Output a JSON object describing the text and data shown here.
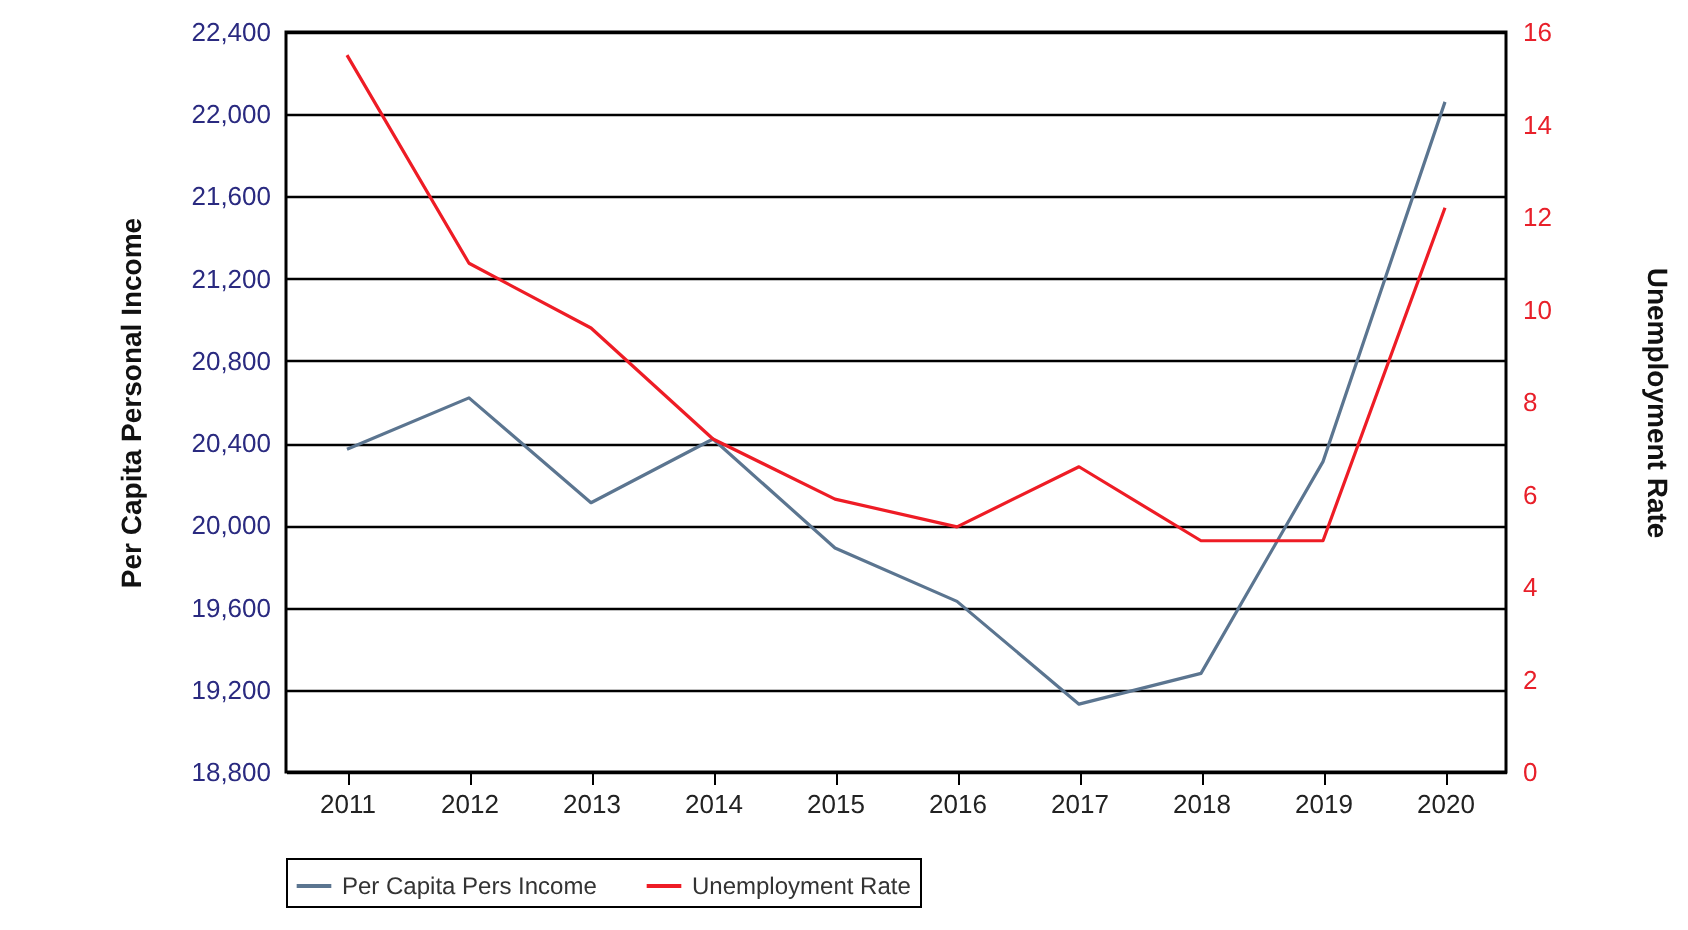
{
  "chart_data": {
    "type": "line",
    "ylabel": "Per Capita Personal Income",
    "y2label": "Unemployment Rate",
    "categories": [
      "2011",
      "2012",
      "2013",
      "2014",
      "2015",
      "2016",
      "2017",
      "2018",
      "2019",
      "2020"
    ],
    "series": [
      {
        "name": "Per Capita Pers Income",
        "color": "#5b7590",
        "values": [
          20370,
          20620,
          20110,
          20420,
          19890,
          19630,
          19130,
          19280,
          20310,
          22060
        ]
      },
      {
        "name": "Unemployment Rate",
        "color": "#ee1c25",
        "axis": "y2",
        "values": [
          15.5,
          11.0,
          9.6,
          7.2,
          5.9,
          5.3,
          6.6,
          5.0,
          5.0,
          12.2
        ]
      }
    ],
    "ylim": [
      18800,
      22400
    ],
    "yticks": [
      {
        "value": 18800,
        "label": "18,800"
      },
      {
        "value": 19200,
        "label": "19,200"
      },
      {
        "value": 19600,
        "label": "19,600"
      },
      {
        "value": 20000,
        "label": "20,000"
      },
      {
        "value": 20400,
        "label": "20,400"
      },
      {
        "value": 20800,
        "label": "20,800"
      },
      {
        "value": 21200,
        "label": "21,200"
      },
      {
        "value": 21600,
        "label": "21,600"
      },
      {
        "value": 22000,
        "label": "22,000"
      },
      {
        "value": 22400,
        "label": "22,400"
      }
    ],
    "y2lim": [
      0,
      16
    ],
    "y2ticks": [
      0,
      2,
      4,
      6,
      8,
      10,
      12,
      14,
      16
    ],
    "grid": "y",
    "legend": "bottom",
    "marker": "none",
    "line_style": "solid"
  }
}
